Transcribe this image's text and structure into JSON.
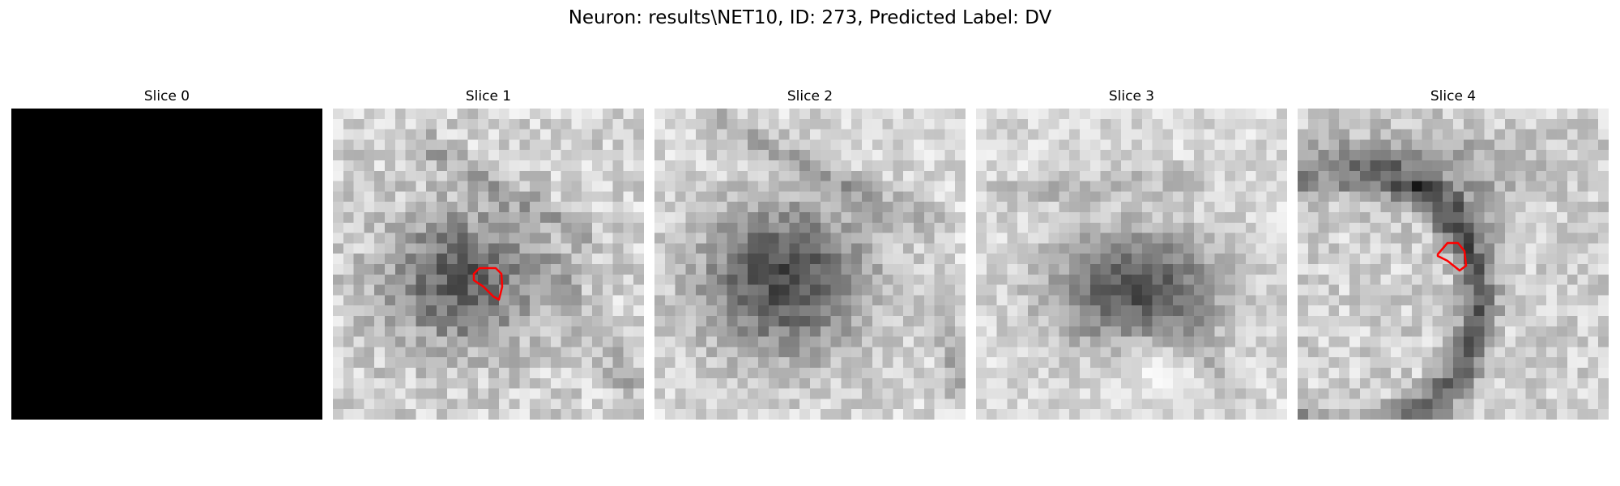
{
  "figure": {
    "title": "Neuron: results\\NET10, ID: 273, Predicted Label: DV"
  },
  "panels": [
    {
      "title": "Slice 0"
    },
    {
      "title": "Slice 1"
    },
    {
      "title": "Slice 2"
    },
    {
      "title": "Slice 3"
    },
    {
      "title": "Slice 4"
    }
  ],
  "colors": {
    "roi_outline": "#ff0000",
    "background": "#ffffff"
  }
}
